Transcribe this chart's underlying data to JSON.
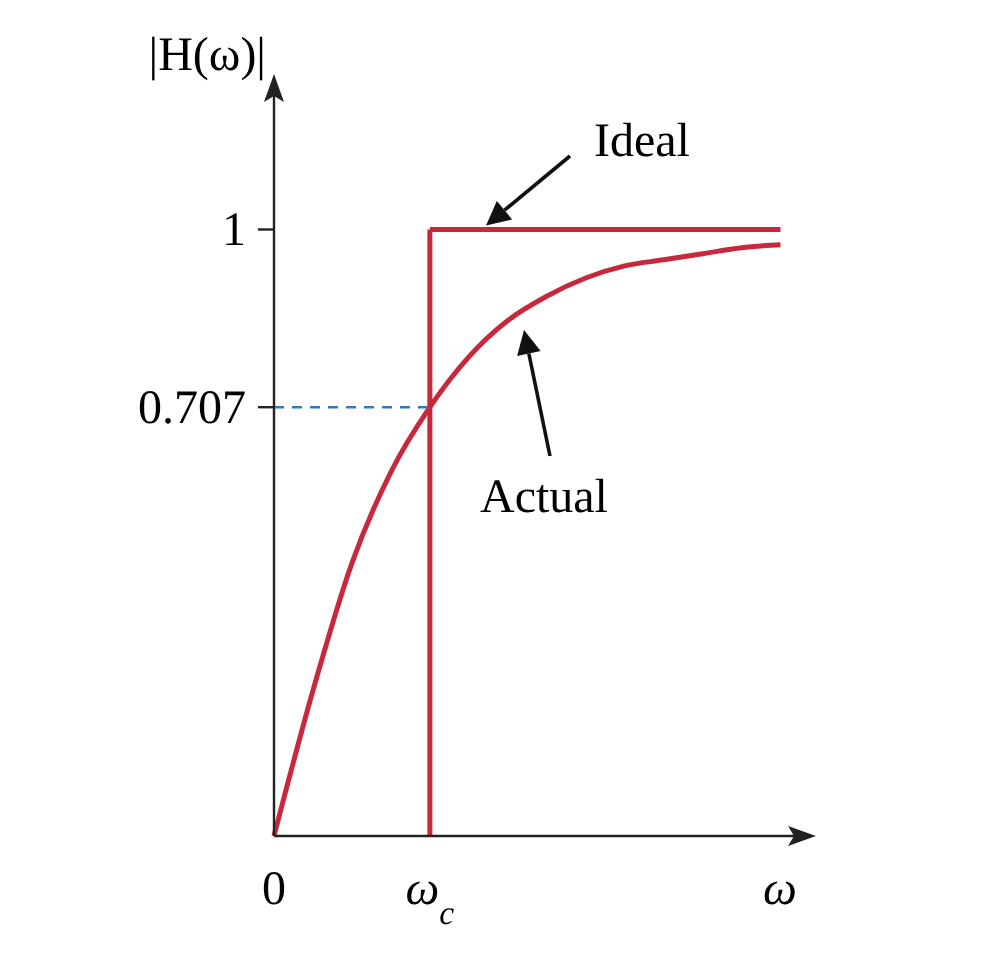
{
  "chart_data": {
    "type": "line",
    "ylabel": "|H(ω)|",
    "xlabel": "ω",
    "categories": [
      "0",
      null,
      null,
      null,
      "ω$_{c}$",
      null,
      null,
      null,
      null,
      null,
      null,
      null,
      null,
      null
    ],
    "ylim": [
      0,
      1.23
    ],
    "yticks": [
      1,
      0.707
    ],
    "series": [
      {
        "color": "#c8283c",
        "values": [
          null,
          null,
          null,
          null,
          1,
          1,
          1,
          1,
          1,
          1,
          1,
          1,
          1,
          1
        ]
      },
      {
        "color": "#c8283c",
        "values": [
          0,
          0.24,
          0.45,
          0.6,
          0.707,
          0.79,
          0.85,
          0.89,
          0.92,
          0.94,
          0.95,
          0.96,
          0.97,
          0.975
        ]
      },
      {
        "color": "#3a78b5",
        "line_style": "dashed",
        "values": [
          0.707,
          0.707,
          0.707,
          0.707,
          0.707,
          null,
          null,
          null,
          null,
          null,
          null,
          null,
          null,
          null
        ]
      }
    ],
    "ref_lines": [
      {
        "axis": "x",
        "value": "ω$_{c}$",
        "color": "#c8283c"
      }
    ],
    "annotations": [
      {
        "text": "Ideal",
        "y": 1
      },
      "Actual"
    ]
  }
}
